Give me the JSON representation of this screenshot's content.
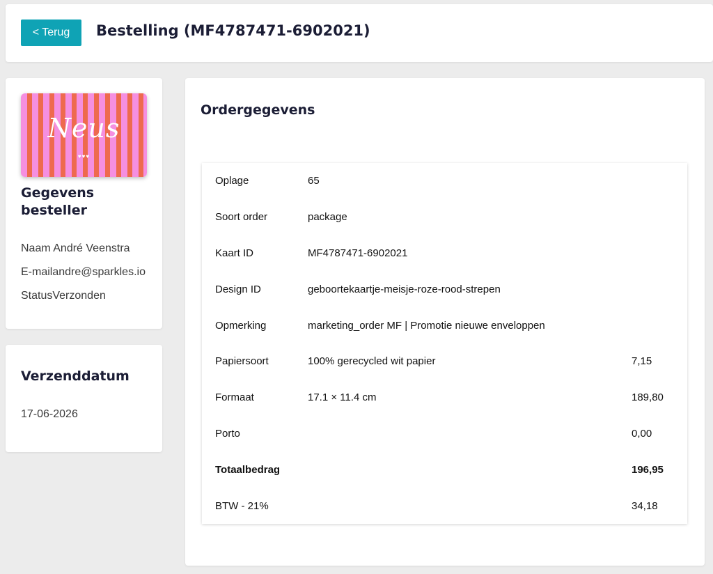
{
  "header": {
    "back_label": "< Terug",
    "title": "Bestelling (MF4787471-6902021)"
  },
  "buyer": {
    "thumbnail_text": "Neus",
    "thumbnail_hearts": "♥♥♥",
    "title": "Gegevens besteller",
    "name_line": "Naam André Veenstra",
    "email_line": "E-mailandre@sparkles.io",
    "status_line": "StatusVerzonden"
  },
  "shipping": {
    "title": "Verzenddatum",
    "date": "17-06-2026"
  },
  "order": {
    "title": "Ordergegevens",
    "rows": [
      {
        "label": "Oplage",
        "value": "65",
        "amount": ""
      },
      {
        "label": "Soort order",
        "value": "package",
        "amount": ""
      },
      {
        "label": "Kaart ID",
        "value": "MF4787471-6902021",
        "amount": ""
      },
      {
        "label": "Design ID",
        "value": "geboortekaartje-meisje-roze-rood-strepen",
        "amount": ""
      },
      {
        "label": "Opmerking",
        "value": "marketing_order MF | Promotie nieuwe enveloppen",
        "amount": ""
      },
      {
        "label": "Papiersoort",
        "value": "100% gerecycled wit papier",
        "amount": "7,15"
      },
      {
        "label": "Formaat",
        "value": "17.1 × 11.4 cm",
        "amount": "189,80"
      },
      {
        "label": "Porto",
        "value": "",
        "amount": "0,00"
      },
      {
        "label": "Totaalbedrag",
        "value": "",
        "amount": "196,95"
      },
      {
        "label": "BTW - 21%",
        "value": "",
        "amount": "34,18"
      }
    ]
  },
  "colors": {
    "accent": "#0fa3b5",
    "text_dark": "#1b1d35",
    "background": "#ececec"
  }
}
